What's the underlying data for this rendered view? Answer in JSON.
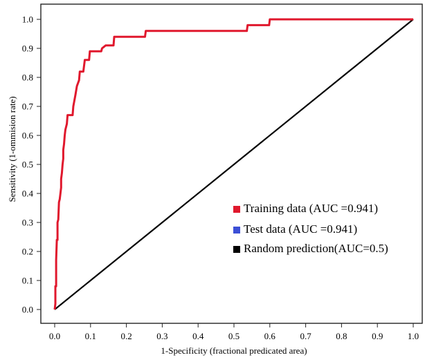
{
  "chart_data": {
    "type": "line",
    "title": "",
    "xlabel": "1-Specificity (fractional predicated area)",
    "ylabel": "Sensitivity (1-ommision rate)",
    "xlim": [
      0,
      1
    ],
    "ylim": [
      0,
      1
    ],
    "xticks": [
      "0.0",
      "0.1",
      "0.2",
      "0.3",
      "0.4",
      "0.5",
      "0.6",
      "0.7",
      "0.8",
      "0.9",
      "1.0"
    ],
    "yticks": [
      "0.0",
      "0.1",
      "0.2",
      "0.3",
      "0.4",
      "0.5",
      "0.6",
      "0.7",
      "0.8",
      "0.9",
      "1.0"
    ],
    "grid": false,
    "legend_position": "bottom-right",
    "series": [
      {
        "name": "Training data (AUC =0.941)",
        "color": "#e0182d",
        "points": [
          [
            0,
            0
          ],
          [
            0.002,
            0.02
          ],
          [
            0.002,
            0.08
          ],
          [
            0.004,
            0.08
          ],
          [
            0.004,
            0.17
          ],
          [
            0.006,
            0.24
          ],
          [
            0.008,
            0.24
          ],
          [
            0.008,
            0.3
          ],
          [
            0.01,
            0.31
          ],
          [
            0.012,
            0.37
          ],
          [
            0.014,
            0.38
          ],
          [
            0.016,
            0.4
          ],
          [
            0.018,
            0.42
          ],
          [
            0.018,
            0.45
          ],
          [
            0.02,
            0.47
          ],
          [
            0.022,
            0.5
          ],
          [
            0.024,
            0.52
          ],
          [
            0.024,
            0.55
          ],
          [
            0.026,
            0.57
          ],
          [
            0.028,
            0.6
          ],
          [
            0.03,
            0.62
          ],
          [
            0.034,
            0.64
          ],
          [
            0.036,
            0.67
          ],
          [
            0.05,
            0.67
          ],
          [
            0.052,
            0.7
          ],
          [
            0.058,
            0.74
          ],
          [
            0.062,
            0.77
          ],
          [
            0.068,
            0.79
          ],
          [
            0.07,
            0.82
          ],
          [
            0.08,
            0.82
          ],
          [
            0.084,
            0.86
          ],
          [
            0.096,
            0.86
          ],
          [
            0.098,
            0.89
          ],
          [
            0.13,
            0.89
          ],
          [
            0.132,
            0.9
          ],
          [
            0.142,
            0.91
          ],
          [
            0.164,
            0.91
          ],
          [
            0.166,
            0.94
          ],
          [
            0.252,
            0.94
          ],
          [
            0.254,
            0.96
          ],
          [
            0.536,
            0.96
          ],
          [
            0.538,
            0.98
          ],
          [
            0.598,
            0.98
          ],
          [
            0.6,
            1.0
          ],
          [
            1.0,
            1.0
          ]
        ]
      },
      {
        "name": "Test data (AUC =0.941)",
        "color": "#3c4fd6",
        "points": []
      },
      {
        "name": "Random prediction(AUC=0.5)",
        "color": "#000000",
        "points": [
          [
            0,
            0
          ],
          [
            1,
            1
          ]
        ]
      }
    ]
  }
}
